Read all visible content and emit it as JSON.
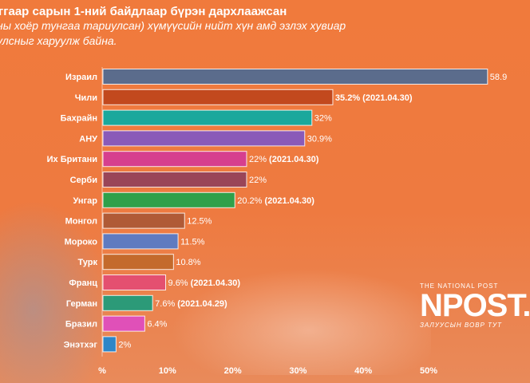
{
  "header": {
    "title": "ггаар сарын 1-ний байдлаар бүрэн дархлаажсан",
    "subtitle_line1": "ны хоёр тунгаа тариулсан) хүмүүсийн нийт хүн амд эзлэх хувиар",
    "subtitle_line2": "улсныг харуулж байна."
  },
  "logo": {
    "top": "THE NATIONAL POST",
    "main": "NPOST.",
    "bottom": "ЗАЛУУСЫН ВОВР ТУТ"
  },
  "colors": {
    "background": "#f07a3c",
    "text": "#ffffff"
  },
  "chart_data": {
    "type": "bar",
    "orientation": "horizontal",
    "title": "",
    "xlabel": "",
    "ylabel": "",
    "xlim": [
      0,
      60
    ],
    "x_ticks": [
      0,
      10,
      20,
      30,
      40,
      50
    ],
    "x_tick_labels": [
      "%",
      "10%",
      "20%",
      "30%",
      "40%",
      "50%"
    ],
    "grid": false,
    "categories": [
      "Израил",
      "Чили",
      "Бахрайн",
      "АНУ",
      "Их Британи",
      "Серби",
      "Унгар",
      "Монгол",
      "Мороко",
      "Турк",
      "Франц",
      "Герман",
      "Бразил",
      "Энэтхэг"
    ],
    "values": [
      58.9,
      35.2,
      32,
      30.9,
      22,
      22,
      20.2,
      12.5,
      11.5,
      10.8,
      9.6,
      7.6,
      6.4,
      2
    ],
    "value_labels": [
      "58.9",
      "35.2%",
      "32%",
      "30.9%",
      "22%",
      "22%",
      "20.2%",
      "12.5%",
      "11.5%",
      "10.8%",
      "9.6%",
      "7.6%",
      "6.4%",
      "2%"
    ],
    "date_labels": [
      "",
      "(2021.04.30)",
      "",
      "",
      "(2021.04.30)",
      "",
      "(2021.04.30)",
      "",
      "",
      "",
      "(2021.04.30)",
      "(2021.04.29)",
      "",
      ""
    ],
    "colors": [
      "#5b6c8c",
      "#c2491e",
      "#1aa89c",
      "#8a5ab8",
      "#d63f8e",
      "#9a4558",
      "#2fa04a",
      "#b05a36",
      "#5f7bc0",
      "#c46a2c",
      "#e45070",
      "#2c9a78",
      "#e050b8",
      "#2e86c8"
    ]
  }
}
